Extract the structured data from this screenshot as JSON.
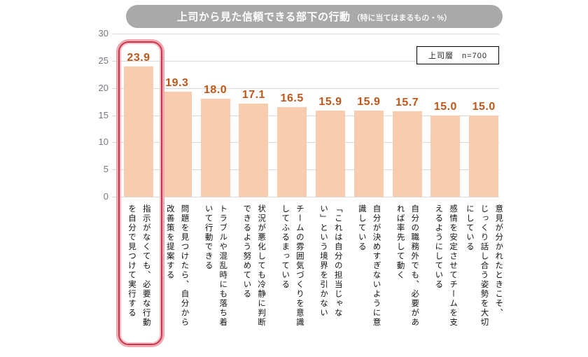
{
  "header": {
    "title": "上司から見た信頼できる部下の行動",
    "title_note": "（特に当てはまるもの・%）"
  },
  "legend": {
    "sample_label": "上司層　n=700"
  },
  "chart_data": {
    "type": "bar",
    "title": "上司から見た信頼できる部下の行動（特に当てはまるもの・%）",
    "sample": "上司層 n=700",
    "categories": [
      "指示がなくても、必要な行動\nを自分で見つけて実行する",
      "問題を見つけたら、自分から\n改善策を提案する",
      "トラブルや混乱時にも落ち着\nいて行動できる",
      "状況が悪化しても冷静に判断\nできるよう努めている",
      "チームの雰囲気づくりを意識\nしてふるまっている",
      "「これは自分の担当じゃな\nい」という境界を引かない",
      "自分が決めすぎないように意\n識している",
      "自分の職務外でも、必要があ\nれば率先して動く",
      "感情を安定させてチームを支\nえるようにしている",
      "意見が分かれたときこそ、\nじっくり話し合う姿勢を大切\nにしている"
    ],
    "values": [
      23.9,
      19.3,
      18.0,
      17.1,
      16.5,
      15.9,
      15.9,
      15.7,
      15.0,
      15.0
    ],
    "ylim": [
      0,
      30
    ],
    "yticks": [
      0,
      5,
      10,
      15,
      20,
      25,
      30
    ],
    "grid": true,
    "bar_color": "#f8cdaf",
    "value_label_color": "#c0571a",
    "highlight_index": 0,
    "highlight_color": "#c9344a"
  }
}
